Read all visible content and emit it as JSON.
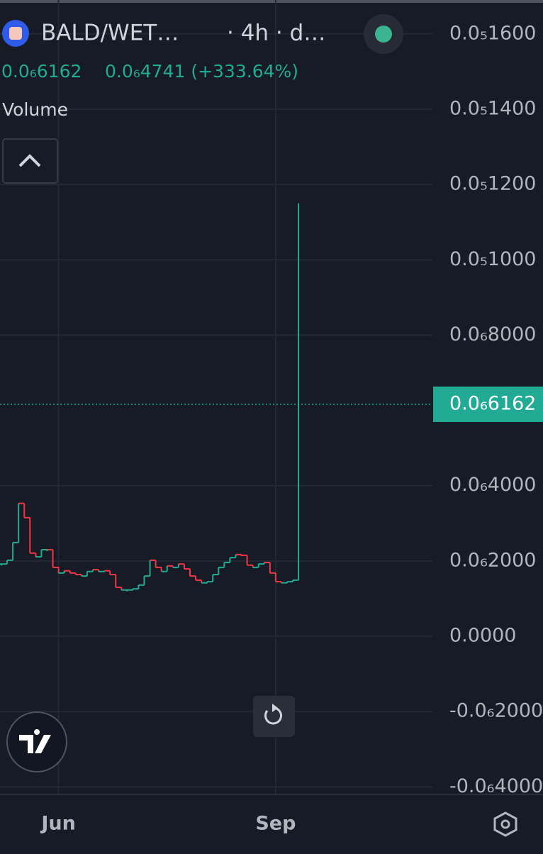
{
  "header": {
    "symbol": "BALD/WET…",
    "interval": "· 4h · d…",
    "last": "0.0₆6162",
    "change": "0.0₆4741 (+333.64%)",
    "volume": "Volume"
  },
  "chart_data": {
    "type": "staircase",
    "categories": [
      null,
      null,
      null,
      null,
      null,
      null,
      null,
      null,
      null,
      null,
      "Jun",
      null,
      null,
      null,
      null,
      null,
      null,
      null,
      null,
      null,
      null,
      null,
      null,
      null,
      null,
      null,
      null,
      null,
      null,
      null,
      null,
      null,
      null,
      null,
      null,
      null,
      null,
      null,
      null,
      null,
      null,
      null,
      null,
      null,
      null,
      null,
      null,
      null,
      "Sep",
      null,
      null,
      null,
      null
    ],
    "series": [
      {
        "up_color": "#22ab94",
        "down_color": "#f23645",
        "values": [
          1.92e-07,
          2.02e-07,
          2.49e-07,
          3.53e-07,
          3.15e-07,
          2.21e-07,
          2.11e-07,
          2.3e-07,
          2.3e-07,
          1.83e-07,
          1.68e-07,
          1.74e-07,
          1.68e-07,
          1.64e-07,
          1.6e-07,
          1.72e-07,
          1.77e-07,
          1.72e-07,
          1.74e-07,
          1.64e-07,
          1.3e-07,
          1.23e-07,
          1.23e-07,
          1.26e-07,
          1.36e-07,
          1.6e-07,
          2.02e-07,
          1.83e-07,
          1.72e-07,
          1.87e-07,
          1.83e-07,
          1.92e-07,
          1.79e-07,
          1.6e-07,
          1.49e-07,
          1.42e-07,
          1.45e-07,
          1.64e-07,
          1.83e-07,
          1.96e-07,
          2.09e-07,
          2.17e-07,
          2.15e-07,
          1.89e-07,
          1.83e-07,
          1.92e-07,
          1.96e-07,
          1.68e-07,
          1.45e-07,
          1.42e-07,
          1.45e-07,
          1.49e-07,
          6.162e-07
        ],
        "last_high": 1.15e-06
      }
    ],
    "last_price_label": {
      "value": 6.162e-07,
      "label": "0.0₆6162"
    },
    "ylim": [
      -4.2e-07,
      1.69e-06
    ],
    "yticks": [
      {
        "value": 1.6e-06,
        "label": "0.0₅1600"
      },
      {
        "value": 1.4e-06,
        "label": "0.0₅1400"
      },
      {
        "value": 1.2e-06,
        "label": "0.0₅1200"
      },
      {
        "value": 1e-06,
        "label": "0.0₅1000"
      },
      {
        "value": 8e-07,
        "label": "0.0₆8000"
      },
      {
        "value": 4e-07,
        "label": "0.0₆4000"
      },
      {
        "value": 2e-07,
        "label": "0.0₆2000"
      },
      {
        "value": 0,
        "label": "0.0000"
      },
      {
        "value": -2e-07,
        "label": "-0.0₆2000"
      },
      {
        "value": -4e-07,
        "label": "-0.0₆4000"
      }
    ],
    "grid": true
  }
}
